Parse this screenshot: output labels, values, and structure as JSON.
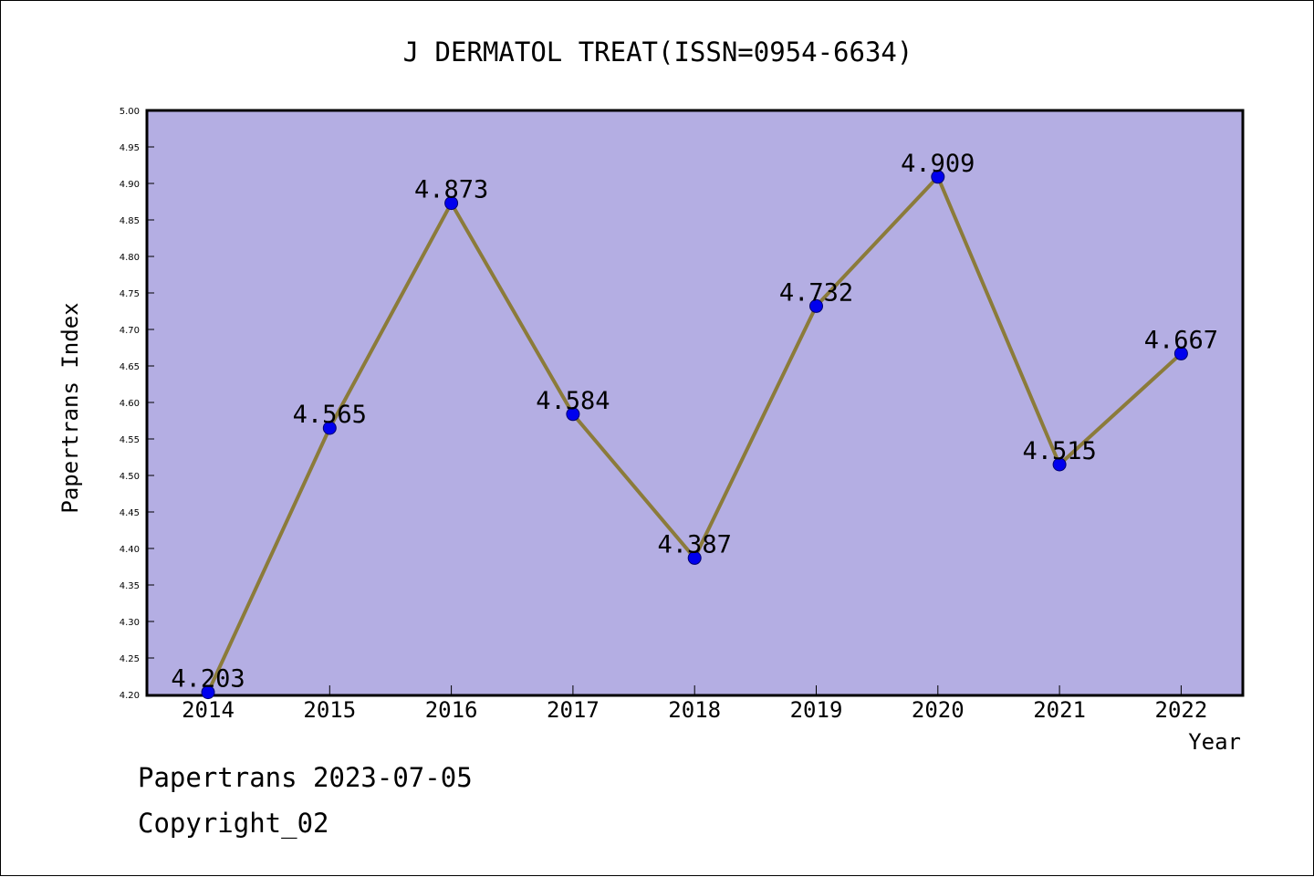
{
  "chart_data": {
    "type": "line",
    "title": "J DERMATOL TREAT(ISSN=0954-6634)",
    "xlabel": "Year",
    "ylabel": "Papertrans Index",
    "categories": [
      "2014",
      "2015",
      "2016",
      "2017",
      "2018",
      "2019",
      "2020",
      "2021",
      "2022"
    ],
    "series": [
      {
        "values": [
          4.203,
          4.565,
          4.873,
          4.584,
          4.387,
          4.732,
          4.909,
          4.515,
          4.667
        ]
      }
    ],
    "data_labels": [
      "4.203",
      "4.565",
      "4.873",
      "4.584",
      "4.387",
      "4.732",
      "4.909",
      "4.515",
      "4.667"
    ],
    "ylim": [
      4.2,
      5.0
    ],
    "yticks": [
      "4.20",
      "4.25",
      "4.30",
      "4.35",
      "4.40",
      "4.45",
      "4.50",
      "4.55",
      "4.60",
      "4.65",
      "4.70",
      "4.75",
      "4.80",
      "4.85",
      "4.90",
      "4.95",
      "5.00"
    ],
    "grid": false,
    "legend": "none",
    "colors": {
      "plot_bg": "#b4aee3",
      "line": "#8b7b3a",
      "marker": "#0000ee",
      "marker_edge": "#00006e"
    }
  },
  "footer": {
    "line1": "Papertrans 2023-07-05",
    "line2": "Copyright_02"
  }
}
